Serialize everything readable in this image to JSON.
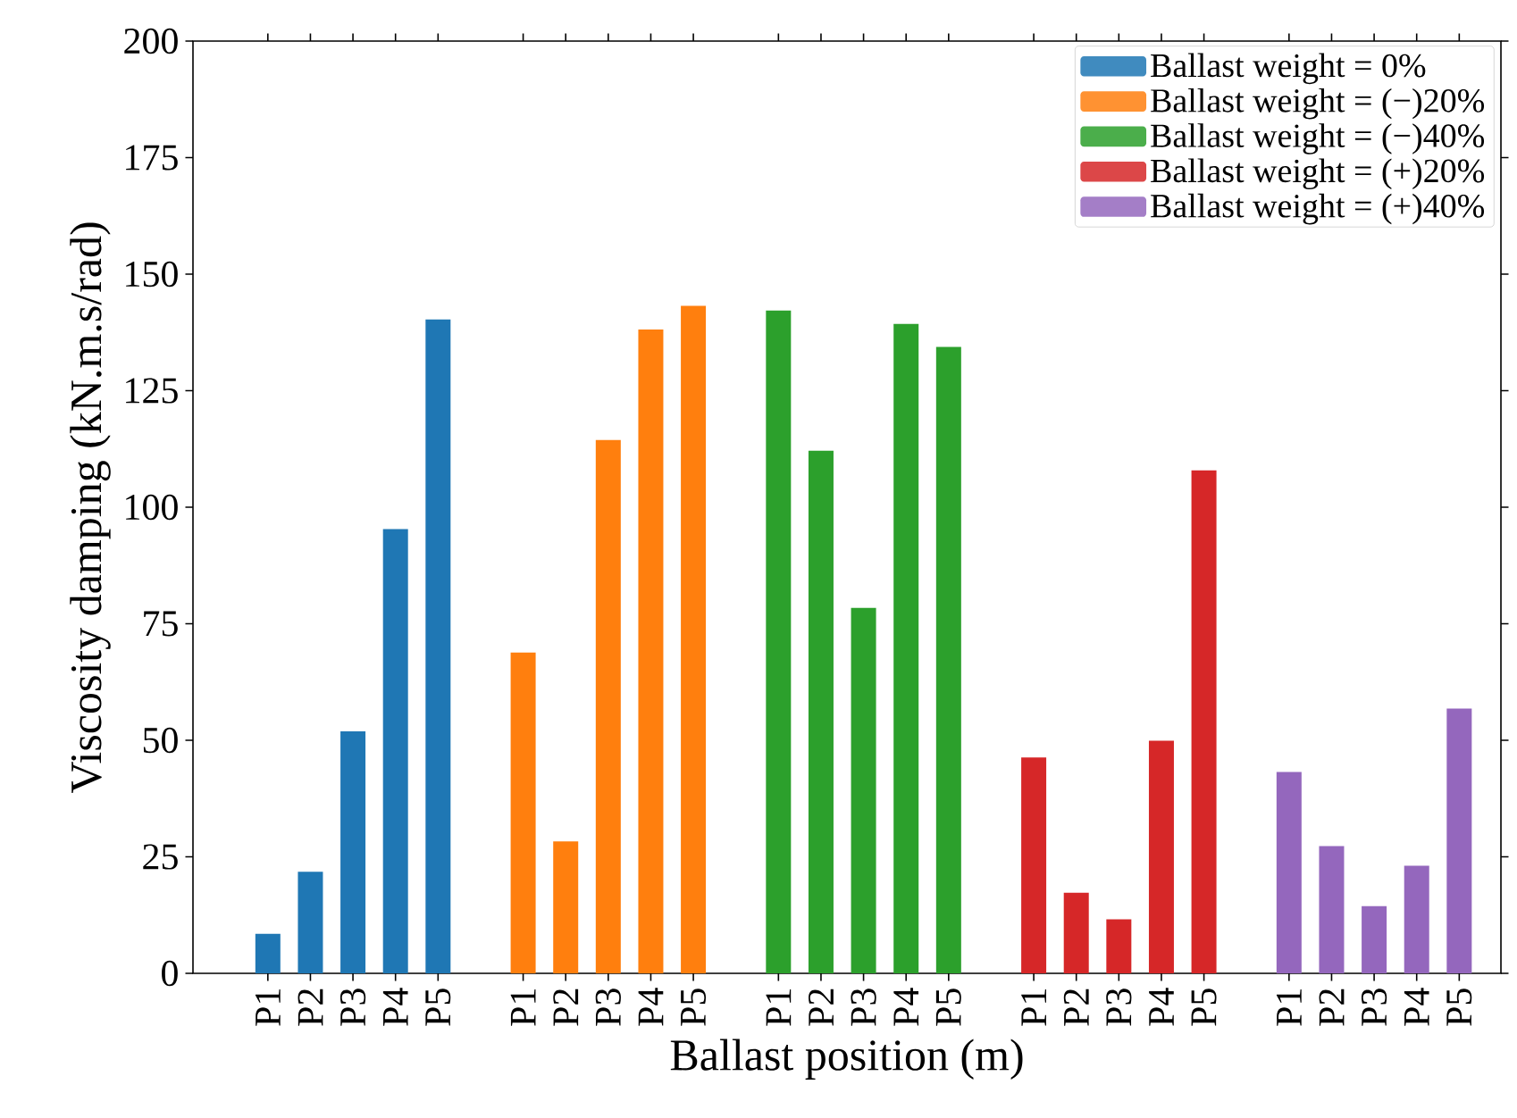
{
  "chart_data": {
    "type": "bar",
    "xlabel": "Ballast position (m)",
    "ylabel": "Viscosity damping (kN.m.s/rad)",
    "categories": [
      "P1",
      "P2",
      "P3",
      "P4",
      "P5",
      null,
      "P1",
      "P2",
      "P3",
      "P4",
      "P5",
      null,
      "P1",
      "P2",
      "P3",
      "P4",
      "P5",
      null,
      "P1",
      "P2",
      "P3",
      "P4",
      "P5",
      null,
      "P1",
      "P2",
      "P3",
      "P4",
      "P5"
    ],
    "series": [
      {
        "name": "Ballast weight = 0%",
        "color": "#1f77b4",
        "values": [
          8.5,
          21.8,
          51.9,
          95.3,
          140.3,
          null,
          null,
          null,
          null,
          null,
          null,
          null,
          null,
          null,
          null,
          null,
          null,
          null,
          null,
          null,
          null,
          null,
          null,
          null,
          null,
          null,
          null,
          null,
          null
        ]
      },
      {
        "name": "Ballast weight = (−)20%",
        "color": "#ff7f0e",
        "values": [
          null,
          null,
          null,
          null,
          null,
          null,
          68.8,
          28.3,
          114.4,
          138.1,
          143.2,
          null,
          null,
          null,
          null,
          null,
          null,
          null,
          null,
          null,
          null,
          null,
          null,
          null,
          null,
          null,
          null,
          null,
          null
        ]
      },
      {
        "name": "Ballast weight = (−)40%",
        "color": "#2ca02c",
        "values": [
          null,
          null,
          null,
          null,
          null,
          null,
          null,
          null,
          null,
          null,
          null,
          null,
          142.2,
          112.1,
          78.4,
          139.3,
          134.4,
          null,
          null,
          null,
          null,
          null,
          null,
          null,
          null,
          null,
          null,
          null,
          null
        ]
      },
      {
        "name": "Ballast weight = (+)20%",
        "color": "#d62728",
        "values": [
          null,
          null,
          null,
          null,
          null,
          null,
          null,
          null,
          null,
          null,
          null,
          null,
          null,
          null,
          null,
          null,
          null,
          null,
          46.3,
          17.3,
          11.6,
          49.9,
          107.9,
          null,
          null,
          null,
          null,
          null,
          null
        ]
      },
      {
        "name": "Ballast weight = (+)40%",
        "color": "#9467bd",
        "values": [
          null,
          null,
          null,
          null,
          null,
          null,
          null,
          null,
          null,
          null,
          null,
          null,
          null,
          null,
          null,
          null,
          null,
          null,
          null,
          null,
          null,
          null,
          null,
          null,
          43.2,
          27.3,
          14.4,
          23.1,
          56.8
        ]
      }
    ],
    "ylim": [
      0,
      200
    ],
    "yticks": [
      0,
      25,
      50,
      75,
      100,
      125,
      150,
      175,
      200
    ],
    "grid": false,
    "legend": "top right"
  }
}
